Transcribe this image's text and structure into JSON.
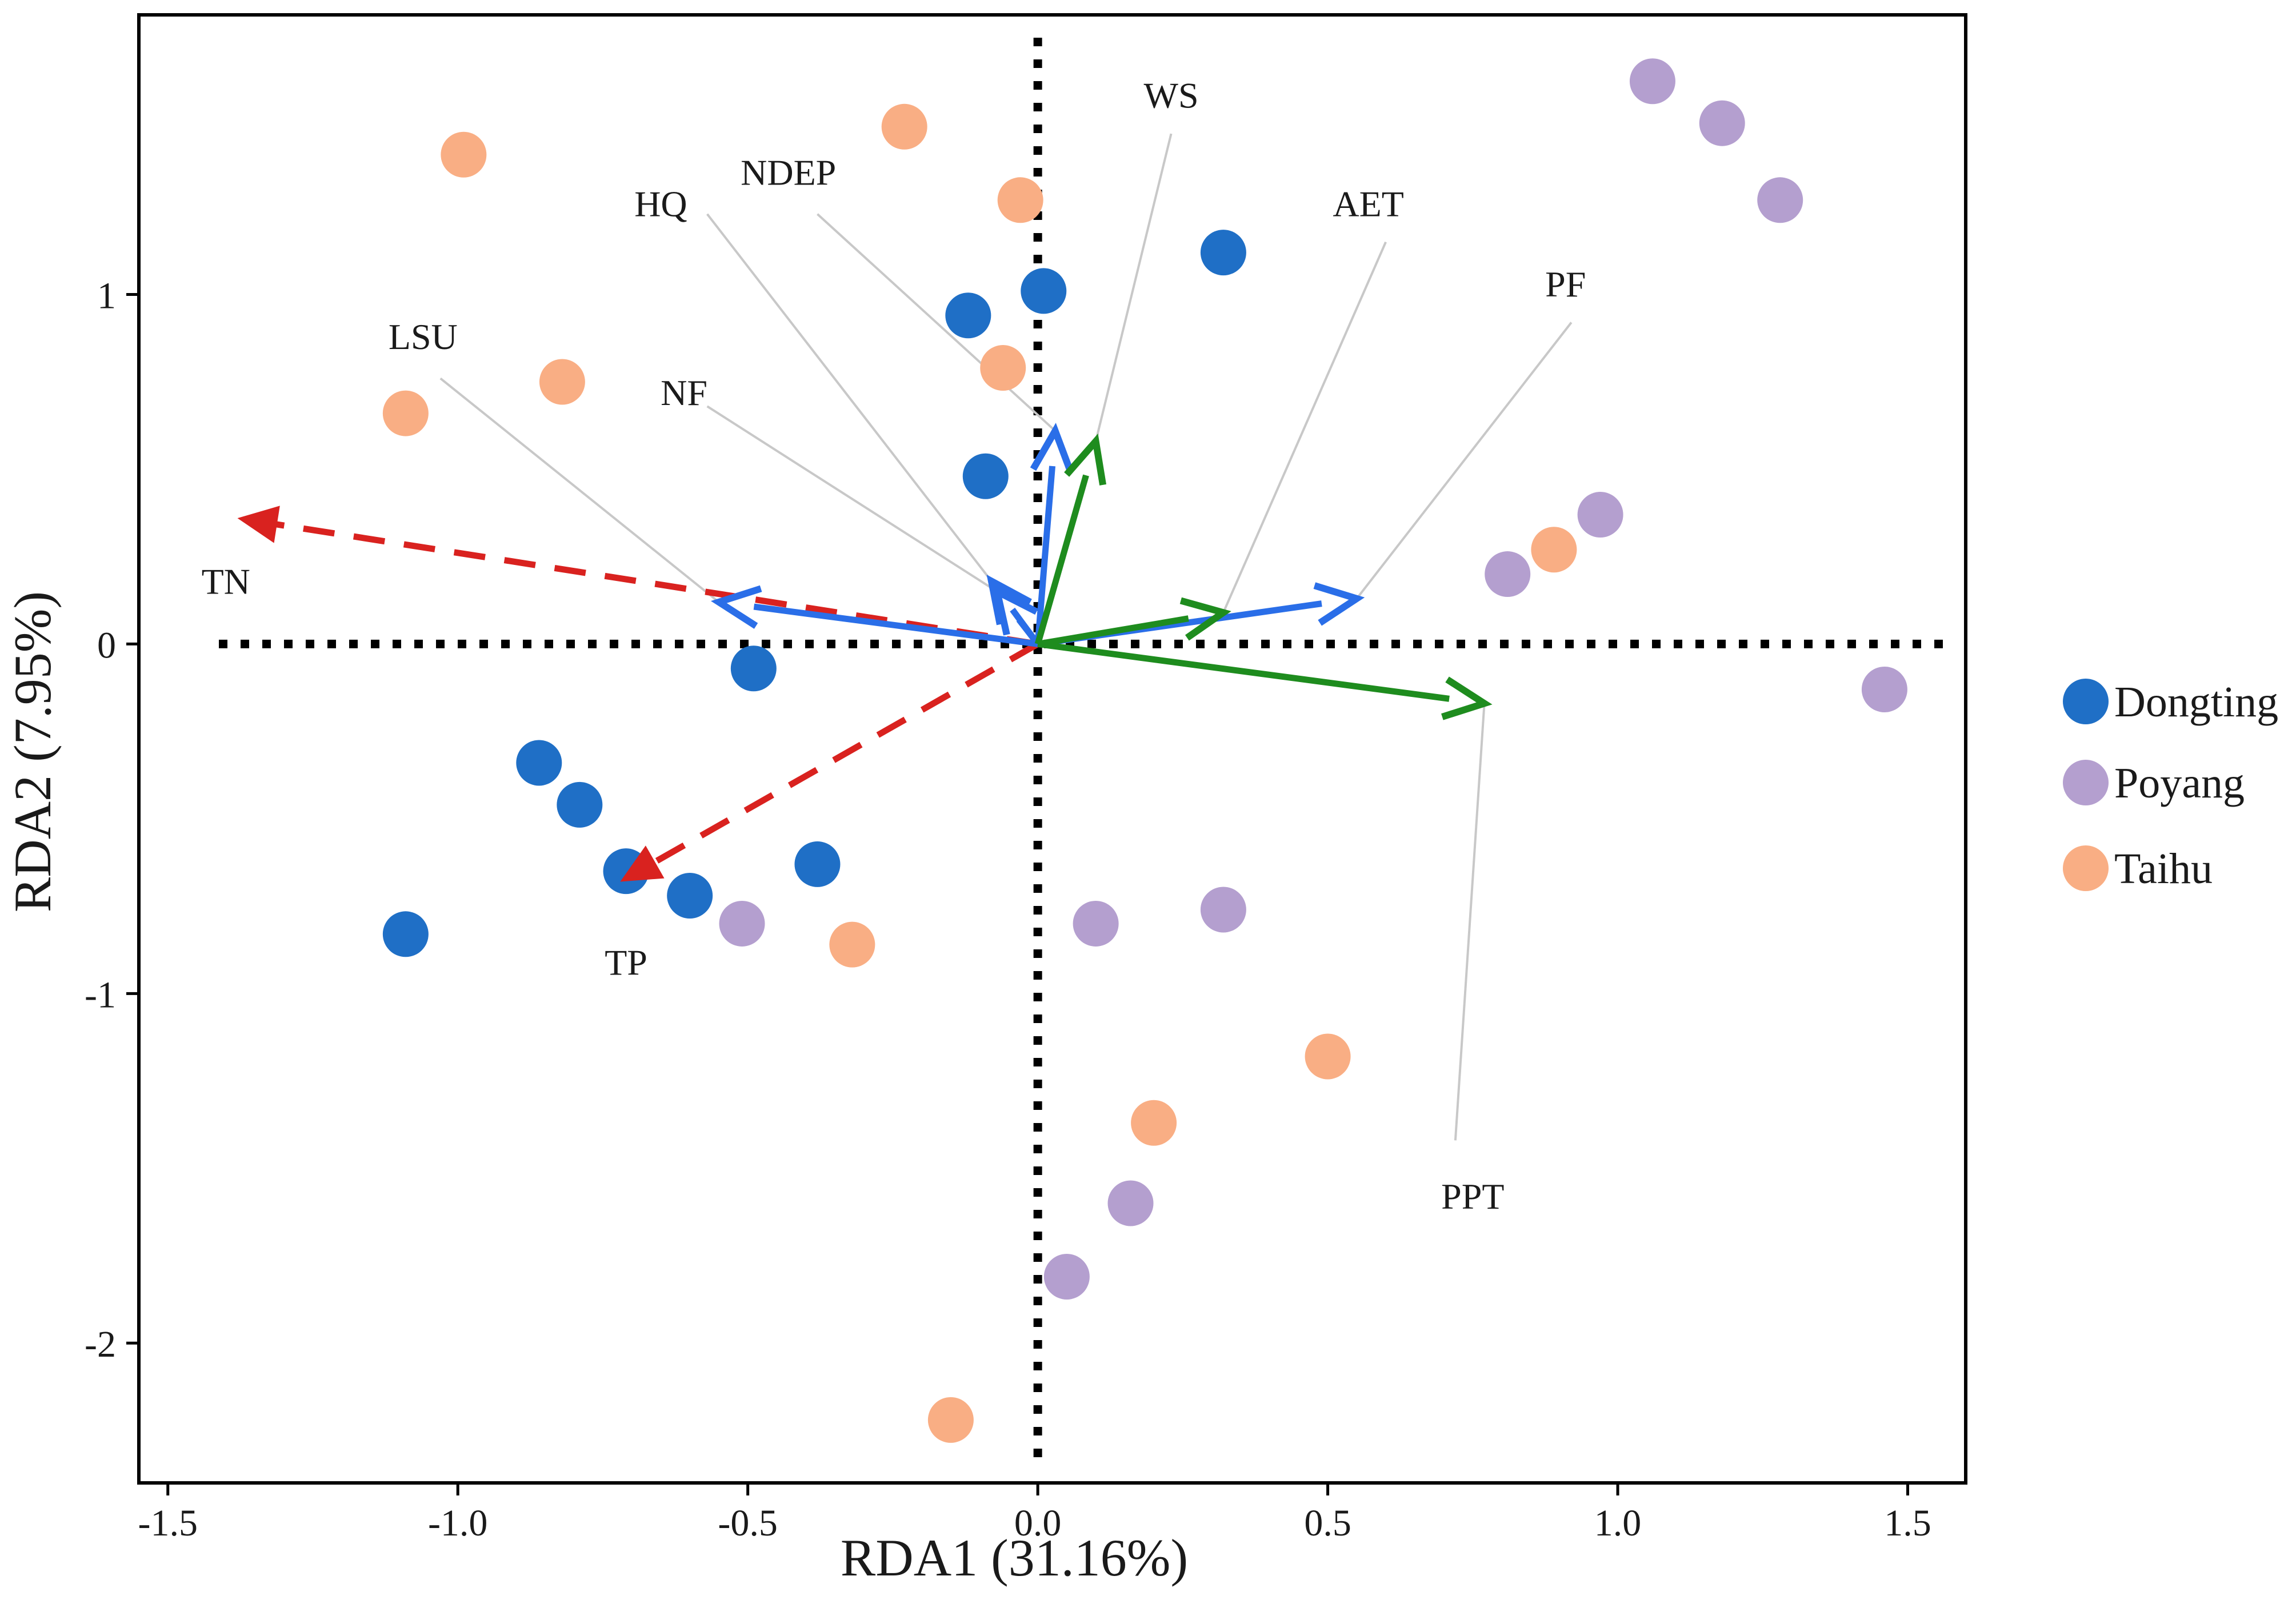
{
  "chart_data": {
    "type": "scatter",
    "xlabel": "RDA1 (31.16%)",
    "ylabel": "RDA2 (7.95%)",
    "xlim": [
      -1.55,
      1.6
    ],
    "ylim": [
      -2.4,
      1.8
    ],
    "x_ticks": [
      -1.5,
      -1.0,
      -0.5,
      0.0,
      0.5,
      1.0,
      1.5
    ],
    "x_tick_labels": [
      "-1.5",
      "-1.0",
      "-0.5",
      "0.0",
      "0.5",
      "1.0",
      "1.5"
    ],
    "y_ticks": [
      -2,
      -1,
      0,
      1
    ],
    "y_tick_labels": [
      "-2",
      "-1",
      "0",
      "1"
    ],
    "grid": false,
    "reference_lines": "dotted lines at x = 0 and y = 0",
    "legend_placement": "right",
    "series": [
      {
        "name": "Dongting",
        "color": "#1f6fc6",
        "points": [
          [
            0.32,
            1.12
          ],
          [
            0.01,
            1.01
          ],
          [
            -0.12,
            0.94
          ],
          [
            -0.09,
            0.48
          ],
          [
            -0.49,
            -0.07
          ],
          [
            -0.86,
            -0.34
          ],
          [
            -0.79,
            -0.46
          ],
          [
            -0.71,
            -0.65
          ],
          [
            -0.6,
            -0.72
          ],
          [
            -0.38,
            -0.63
          ],
          [
            -1.09,
            -0.83
          ]
        ]
      },
      {
        "name": "Poyang",
        "color": "#b49fcf",
        "points": [
          [
            1.06,
            1.61
          ],
          [
            1.18,
            1.49
          ],
          [
            1.28,
            1.27
          ],
          [
            0.97,
            0.37
          ],
          [
            0.81,
            0.2
          ],
          [
            1.46,
            -0.13
          ],
          [
            -0.51,
            -0.8
          ],
          [
            0.1,
            -0.8
          ],
          [
            0.32,
            -0.76
          ],
          [
            0.16,
            -1.6
          ],
          [
            0.05,
            -1.81
          ]
        ]
      },
      {
        "name": "Taihu",
        "color": "#f9ae84",
        "points": [
          [
            -0.99,
            1.4
          ],
          [
            -0.23,
            1.48
          ],
          [
            -0.03,
            1.27
          ],
          [
            -0.06,
            0.79
          ],
          [
            -0.82,
            0.75
          ],
          [
            -1.09,
            0.66
          ],
          [
            0.89,
            0.27
          ],
          [
            -0.32,
            -0.86
          ],
          [
            0.5,
            -1.18
          ],
          [
            0.2,
            -1.37
          ],
          [
            -0.15,
            -2.22
          ]
        ]
      }
    ],
    "vectors": [
      {
        "name": "TN",
        "x": -1.38,
        "y": 0.36,
        "color": "#d9221f",
        "style": "dashed",
        "label_x": -1.4,
        "label_y": 0.18
      },
      {
        "name": "TP",
        "x": -0.72,
        "y": -0.68,
        "color": "#d9221f",
        "style": "dashed",
        "label_x": -0.71,
        "label_y": -0.91
      },
      {
        "name": "LSU",
        "x": -0.55,
        "y": 0.12,
        "color": "#2a6ee8",
        "style": "solid",
        "label_x": -1.06,
        "label_y": 0.88,
        "leader": [
          -1.03,
          0.76
        ]
      },
      {
        "name": "NF",
        "x": -0.07,
        "y": 0.15,
        "color": "#2a6ee8",
        "style": "solid",
        "label_x": -0.61,
        "label_y": 0.72,
        "leader": [
          -0.57,
          0.68
        ]
      },
      {
        "name": "HQ",
        "x": -0.08,
        "y": 0.18,
        "color": "#2a6ee8",
        "style": "solid",
        "label_x": -0.65,
        "label_y": 1.26,
        "leader": [
          -0.57,
          1.23
        ]
      },
      {
        "name": "NDEP",
        "x": 0.03,
        "y": 0.61,
        "color": "#2a6ee8",
        "style": "solid",
        "label_x": -0.43,
        "label_y": 1.35,
        "leader": [
          -0.38,
          1.23
        ]
      },
      {
        "name": "PF",
        "x": 0.55,
        "y": 0.13,
        "color": "#2a6ee8",
        "style": "solid",
        "label_x": 0.91,
        "label_y": 1.03,
        "leader": [
          0.92,
          0.92
        ]
      },
      {
        "name": "WS",
        "x": 0.1,
        "y": 0.58,
        "color": "#1e8c1e",
        "style": "solid",
        "label_x": 0.23,
        "label_y": 1.57,
        "leader": [
          0.23,
          1.46
        ]
      },
      {
        "name": "AET",
        "x": 0.32,
        "y": 0.09,
        "color": "#1e8c1e",
        "style": "solid",
        "label_x": 0.57,
        "label_y": 1.26,
        "leader": [
          0.6,
          1.15
        ]
      },
      {
        "name": "PPT",
        "x": 0.77,
        "y": -0.17,
        "color": "#1e8c1e",
        "style": "solid",
        "label_x": 0.75,
        "label_y": -1.58,
        "leader": [
          0.72,
          -1.42
        ]
      }
    ]
  },
  "legend": {
    "items": [
      {
        "label": "Dongting",
        "color": "#1f6fc6"
      },
      {
        "label": "Poyang",
        "color": "#b49fcf"
      },
      {
        "label": "Taihu",
        "color": "#f9ae84"
      }
    ]
  }
}
